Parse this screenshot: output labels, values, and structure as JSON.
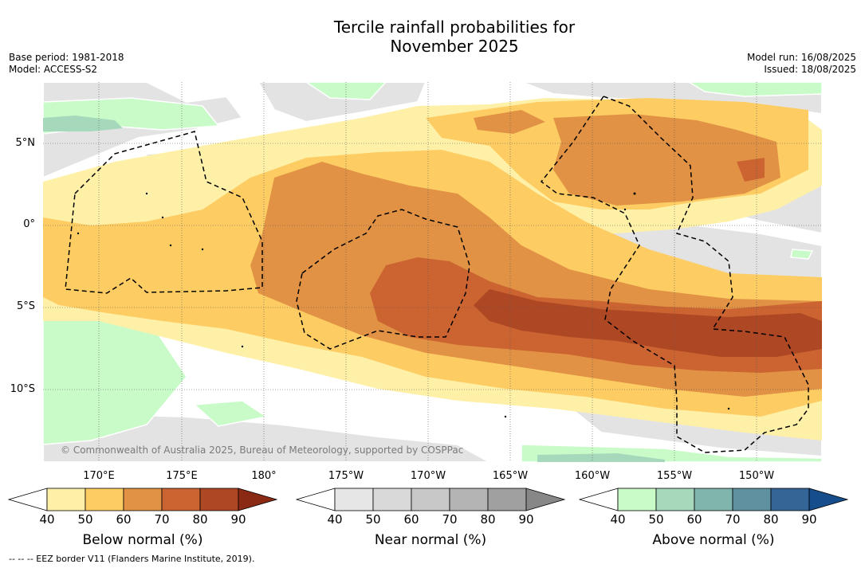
{
  "title": {
    "line1": "Tercile rainfall probabilities for",
    "line2": "November 2025"
  },
  "meta_left": {
    "base_period": "Base period: 1981-2018",
    "model": "Model: ACCESS-S2"
  },
  "meta_right": {
    "model_run": "Model run: 16/08/2025",
    "issued": "Issued: 18/08/2025"
  },
  "map": {
    "lat_labels": [
      "5°N",
      "0°",
      "5°S",
      "10°S"
    ],
    "lon_labels": [
      "170°E",
      "175°E",
      "180°",
      "175°W",
      "170°W",
      "165°W",
      "160°W",
      "155°W",
      "150°W"
    ],
    "copyright": "© Commonwealth of Australia 2025, Bureau of Meteorology, supported by COSPPac"
  },
  "colorbars": [
    {
      "name": "Below normal (%)",
      "colors": [
        "#fff0a8",
        "#fdcd64",
        "#e19244",
        "#cc6432",
        "#ae4724",
        "#8a2a14"
      ],
      "ticks": [
        "40",
        "50",
        "60",
        "70",
        "80",
        "90"
      ]
    },
    {
      "name": "Near normal (%)",
      "colors": [
        "#e6e6e6",
        "#d9d9d9",
        "#c8c8c8",
        "#b4b4b4",
        "#a0a0a0",
        "#878787"
      ],
      "ticks": [
        "40",
        "50",
        "60",
        "70",
        "80",
        "90"
      ]
    },
    {
      "name": "Above normal (%)",
      "colors": [
        "#c9fbc9",
        "#a6d8bc",
        "#80b5ad",
        "#5f91a1",
        "#346596",
        "#164e8c"
      ],
      "ticks": [
        "40",
        "50",
        "60",
        "70",
        "80",
        "90"
      ]
    }
  ],
  "footnote": "--  --  -- EEZ border V11 (Flanders Marine Institute, 2019)."
}
